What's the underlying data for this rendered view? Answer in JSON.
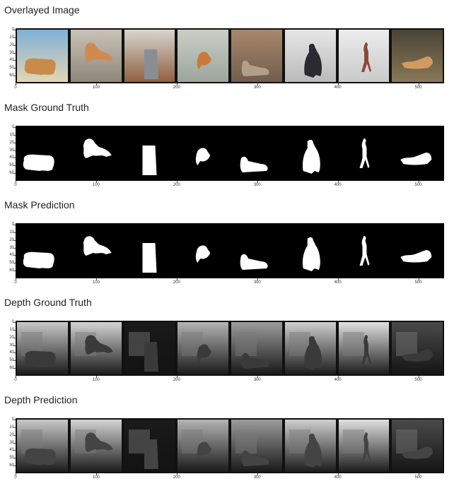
{
  "panels": [
    {
      "title": "Overlayed Image",
      "kind": "overlay"
    },
    {
      "title": "Mask Ground Truth",
      "kind": "mask"
    },
    {
      "title": "Mask Prediction",
      "kind": "mask"
    },
    {
      "title": "Depth Ground Truth",
      "kind": "depth"
    },
    {
      "title": "Depth Prediction",
      "kind": "depth"
    }
  ],
  "y_ticks": [
    "0",
    "10",
    "20",
    "30",
    "40",
    "50",
    "60"
  ],
  "x_ticks": [
    "0",
    "100",
    "200",
    "300",
    "400",
    "500"
  ],
  "objects": [
    "sofa",
    "cat-jump",
    "fridge",
    "cat-small",
    "cat-lying",
    "batman",
    "person-walking",
    "cat-stretch"
  ]
}
